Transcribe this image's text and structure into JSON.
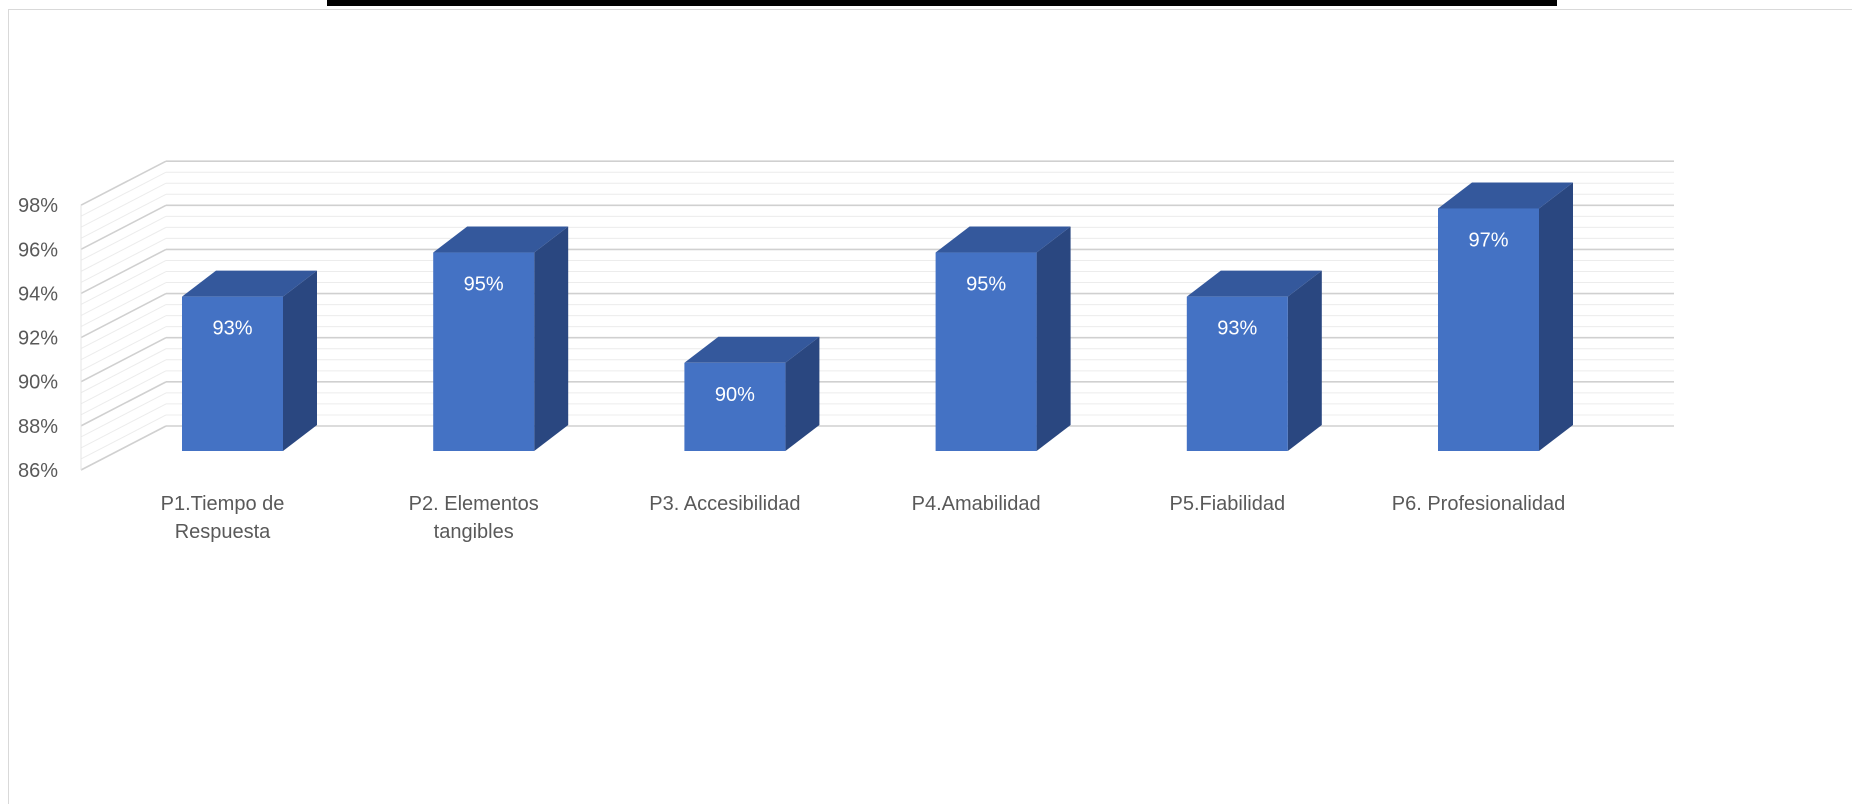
{
  "chart_data": {
    "type": "bar",
    "style": "3d-column",
    "categories": [
      [
        "P1.Tiempo de",
        "Respuesta"
      ],
      [
        "P2. Elementos",
        "tangibles"
      ],
      [
        "P3. Accesibilidad"
      ],
      [
        "P4.Amabilidad"
      ],
      [
        "P5.Fiabilidad"
      ],
      [
        "P6. Profesionalidad"
      ]
    ],
    "values": [
      93,
      95,
      90,
      95,
      93,
      97
    ],
    "data_labels": [
      "93%",
      "95%",
      "90%",
      "95%",
      "93%",
      "97%"
    ],
    "ylim": [
      86,
      98
    ],
    "yticks": [
      86,
      88,
      90,
      92,
      94,
      96,
      98
    ],
    "ytick_labels": [
      "86%",
      "88%",
      "90%",
      "92%",
      "94%",
      "96%",
      "98%"
    ],
    "grid": true,
    "colors": {
      "front": "#4472c4",
      "side": "#2a4780",
      "top": "#34589c",
      "grid": "#d9d9d9"
    }
  }
}
